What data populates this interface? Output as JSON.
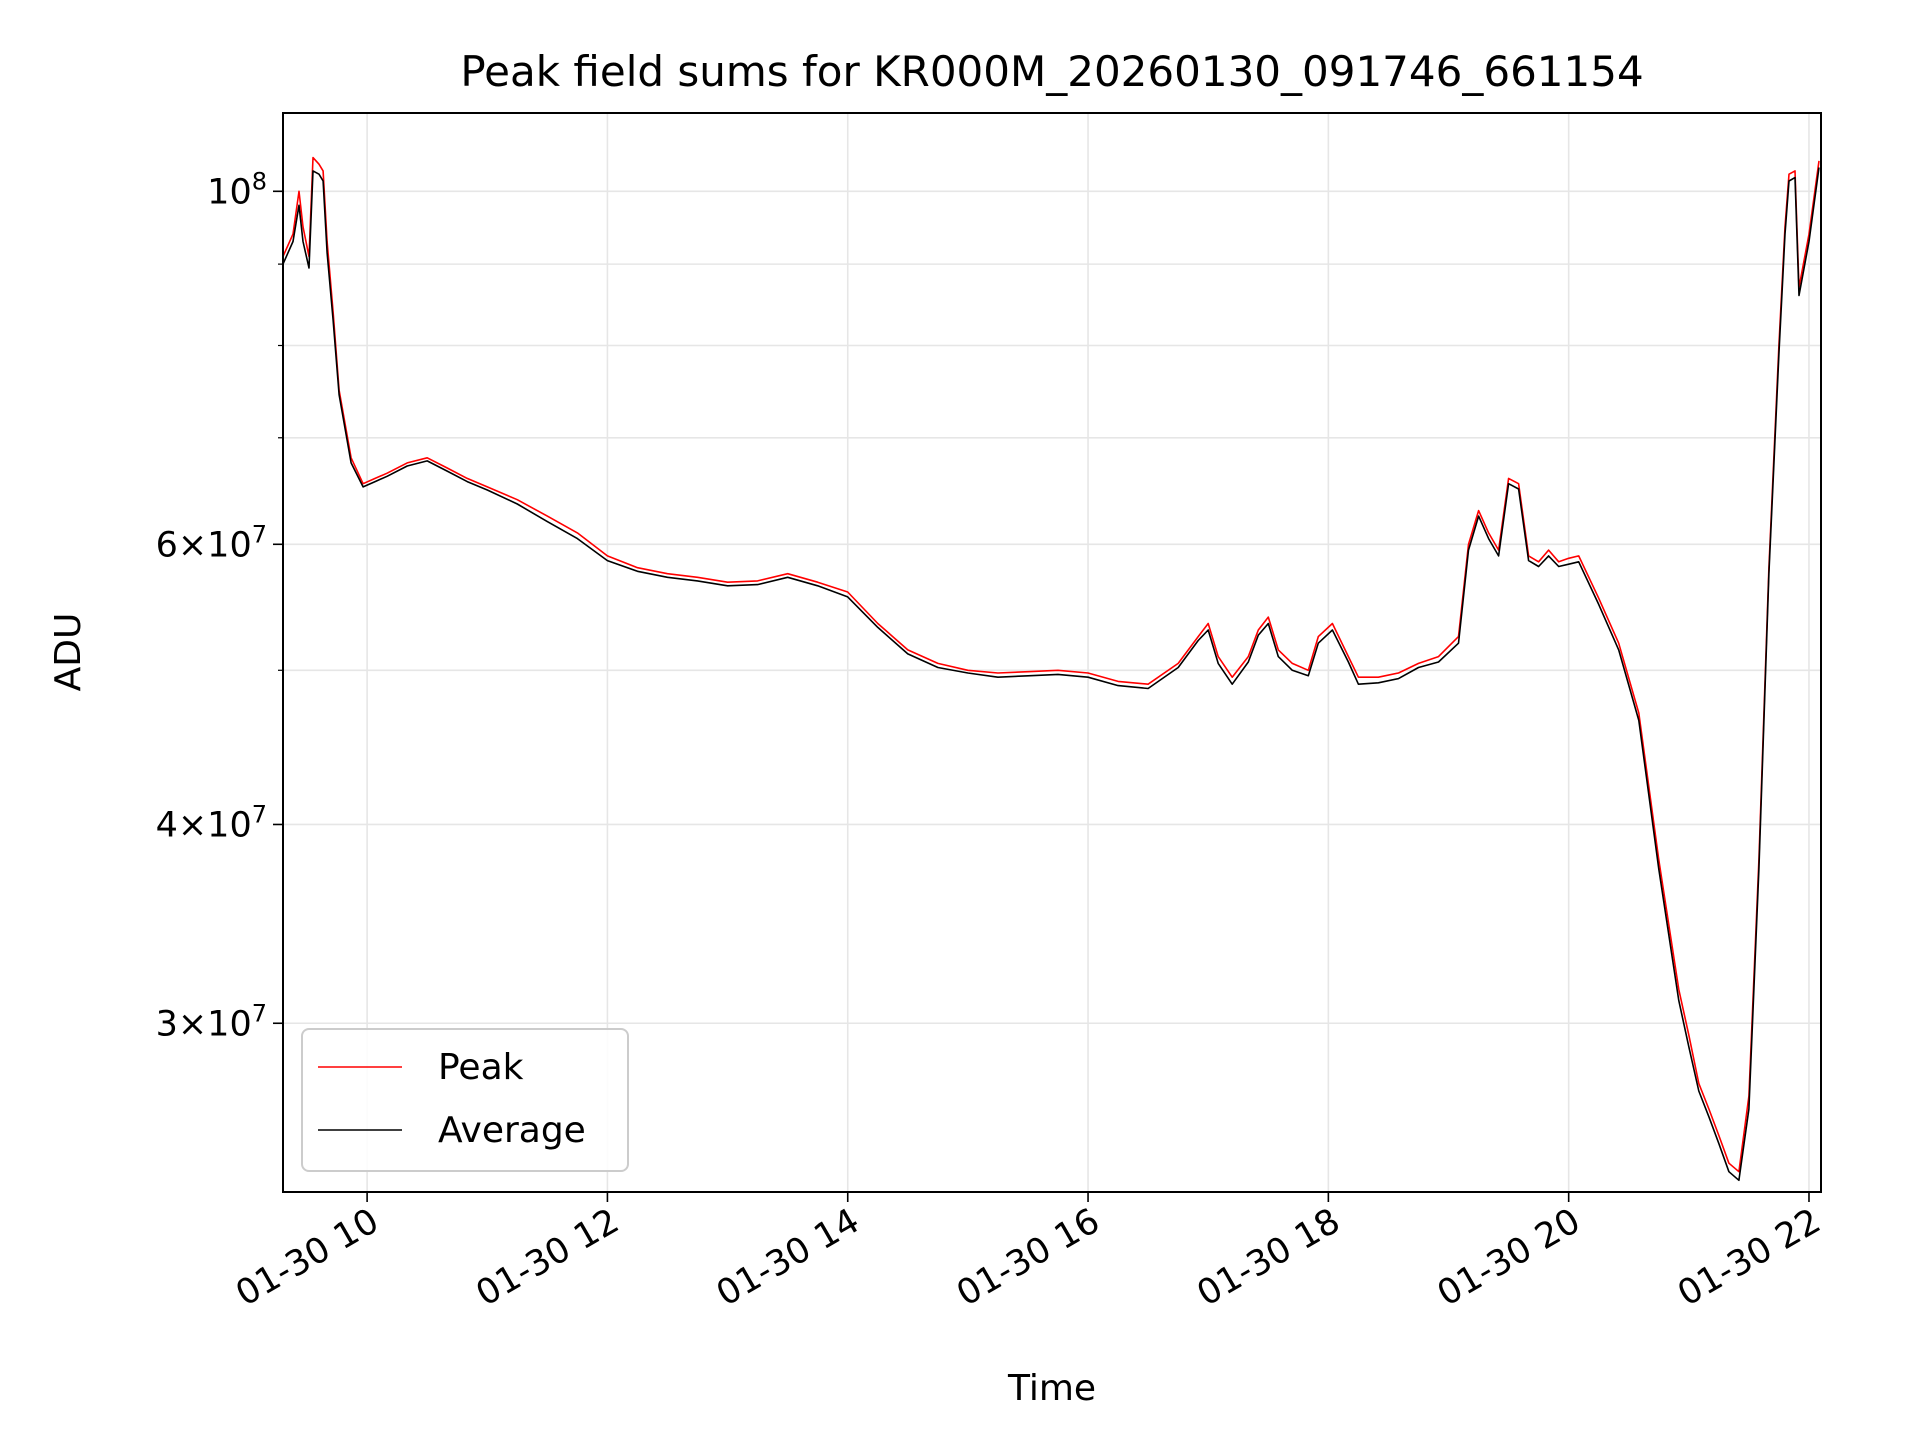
{
  "chart_data": {
    "type": "line",
    "title": "Peak field sums for KR000M_20260130_091746_661154",
    "xlabel": "Time",
    "ylabel": "ADU",
    "yscale": "log",
    "grid": true,
    "legend_position": "lower-left",
    "x_axis": {
      "type": "datetime",
      "start": "2026-01-30 09:18",
      "end": "2026-01-30 22:06",
      "ticks": [
        {
          "time": "2026-01-30 10:00",
          "label": "01-30 10"
        },
        {
          "time": "2026-01-30 12:00",
          "label": "01-30 12"
        },
        {
          "time": "2026-01-30 14:00",
          "label": "01-30 14"
        },
        {
          "time": "2026-01-30 16:00",
          "label": "01-30 16"
        },
        {
          "time": "2026-01-30 18:00",
          "label": "01-30 18"
        },
        {
          "time": "2026-01-30 20:00",
          "label": "01-30 20"
        },
        {
          "time": "2026-01-30 22:00",
          "label": "01-30 22"
        }
      ]
    },
    "y_axis": {
      "ylim": [
        23500000,
        112000000
      ],
      "major_ticks": [
        {
          "value": 30000000,
          "base": "3",
          "exp": "7"
        },
        {
          "value": 40000000,
          "base": "4",
          "exp": "7"
        },
        {
          "value": 60000000,
          "base": "6",
          "exp": "7"
        },
        {
          "value": 100000000,
          "base": "",
          "exp": "8"
        }
      ],
      "minor_ticks": [
        50000000,
        70000000,
        80000000,
        90000000
      ]
    },
    "series": [
      {
        "name": "Peak",
        "color": "#ff0000",
        "x": [
          "09:18",
          "09:23",
          "09:26",
          "09:28",
          "09:31",
          "09:33",
          "09:36",
          "09:38",
          "09:40",
          "09:43",
          "09:46",
          "09:52",
          "09:58",
          "10:04",
          "10:10",
          "10:20",
          "10:30",
          "10:40",
          "10:50",
          "11:00",
          "11:15",
          "11:30",
          "11:45",
          "12:00",
          "12:15",
          "12:30",
          "12:45",
          "13:00",
          "13:15",
          "13:30",
          "13:45",
          "14:00",
          "14:15",
          "14:30",
          "14:45",
          "15:00",
          "15:15",
          "15:30",
          "15:45",
          "16:00",
          "16:15",
          "16:30",
          "16:45",
          "16:55",
          "17:00",
          "17:05",
          "17:12",
          "17:20",
          "17:25",
          "17:30",
          "17:35",
          "17:42",
          "17:50",
          "17:55",
          "18:02",
          "18:10",
          "18:15",
          "18:25",
          "18:35",
          "18:45",
          "18:55",
          "19:05",
          "19:10",
          "19:15",
          "19:20",
          "19:25",
          "19:30",
          "19:35",
          "19:40",
          "19:45",
          "19:50",
          "19:55",
          "20:00",
          "20:05",
          "20:15",
          "20:25",
          "20:35",
          "20:45",
          "20:55",
          "21:00",
          "21:05",
          "21:10",
          "21:15",
          "21:20",
          "21:25",
          "21:30",
          "21:35",
          "21:40",
          "21:45",
          "21:48",
          "21:50",
          "21:53",
          "21:55",
          "22:00",
          "22:05"
        ],
        "y": [
          91000000,
          94000000,
          100000000,
          95000000,
          91000000,
          105000000,
          104000000,
          103000000,
          93000000,
          84000000,
          75000000,
          68000000,
          65500000,
          66000000,
          66500000,
          67500000,
          68000000,
          67000000,
          66000000,
          65200000,
          64000000,
          62500000,
          61000000,
          59000000,
          58000000,
          57500000,
          57200000,
          56800000,
          56900000,
          57500000,
          56800000,
          56000000,
          53500000,
          51500000,
          50500000,
          50000000,
          49800000,
          49900000,
          50000000,
          49800000,
          49200000,
          49000000,
          50500000,
          52500000,
          53500000,
          51000000,
          49500000,
          51000000,
          53000000,
          54000000,
          51500000,
          50500000,
          50000000,
          52500000,
          53500000,
          51000000,
          49500000,
          49500000,
          49800000,
          50500000,
          51000000,
          52500000,
          60000000,
          63000000,
          61000000,
          59500000,
          66000000,
          65500000,
          59000000,
          58500000,
          59500000,
          58500000,
          58800000,
          59000000,
          55500000,
          52000000,
          47000000,
          38000000,
          31500000,
          29500000,
          27500000,
          26500000,
          25500000,
          24500000,
          24200000,
          27000000,
          38000000,
          58000000,
          80000000,
          95000000,
          102500000,
          103000000,
          87000000,
          94000000,
          104500000
        ]
      },
      {
        "name": "Average",
        "color": "#000000",
        "x": [
          "09:18",
          "09:23",
          "09:26",
          "09:28",
          "09:31",
          "09:33",
          "09:36",
          "09:38",
          "09:40",
          "09:43",
          "09:46",
          "09:52",
          "09:58",
          "10:04",
          "10:10",
          "10:20",
          "10:30",
          "10:40",
          "10:50",
          "11:00",
          "11:15",
          "11:30",
          "11:45",
          "12:00",
          "12:15",
          "12:30",
          "12:45",
          "13:00",
          "13:15",
          "13:30",
          "13:45",
          "14:00",
          "14:15",
          "14:30",
          "14:45",
          "15:00",
          "15:15",
          "15:30",
          "15:45",
          "16:00",
          "16:15",
          "16:30",
          "16:45",
          "16:55",
          "17:00",
          "17:05",
          "17:12",
          "17:20",
          "17:25",
          "17:30",
          "17:35",
          "17:42",
          "17:50",
          "17:55",
          "18:02",
          "18:10",
          "18:15",
          "18:25",
          "18:35",
          "18:45",
          "18:55",
          "19:05",
          "19:10",
          "19:15",
          "19:20",
          "19:25",
          "19:30",
          "19:35",
          "19:40",
          "19:45",
          "19:50",
          "19:55",
          "20:00",
          "20:05",
          "20:15",
          "20:25",
          "20:35",
          "20:45",
          "20:55",
          "21:00",
          "21:05",
          "21:10",
          "21:15",
          "21:20",
          "21:25",
          "21:30",
          "21:35",
          "21:40",
          "21:45",
          "21:48",
          "21:50",
          "21:53",
          "21:55",
          "22:00",
          "22:05"
        ],
        "y": [
          90000000,
          93000000,
          98000000,
          93000000,
          89500000,
          103000000,
          102500000,
          101500000,
          91500000,
          83000000,
          74500000,
          67500000,
          65200000,
          65700000,
          66200000,
          67200000,
          67700000,
          66700000,
          65700000,
          64900000,
          63600000,
          62000000,
          60500000,
          58600000,
          57700000,
          57200000,
          56900000,
          56500000,
          56600000,
          57200000,
          56500000,
          55600000,
          53200000,
          51200000,
          50200000,
          49800000,
          49500000,
          49600000,
          49700000,
          49500000,
          48900000,
          48700000,
          50200000,
          52200000,
          53000000,
          50500000,
          49000000,
          50600000,
          52600000,
          53500000,
          51000000,
          50000000,
          49600000,
          52000000,
          53000000,
          50600000,
          49000000,
          49100000,
          49400000,
          50200000,
          50600000,
          52000000,
          59500000,
          62500000,
          60500000,
          59000000,
          65500000,
          65000000,
          58600000,
          58100000,
          59000000,
          58100000,
          58300000,
          58500000,
          55000000,
          51500000,
          46500000,
          37500000,
          31000000,
          29000000,
          27200000,
          26200000,
          25200000,
          24200000,
          23900000,
          26500000,
          37500000,
          57500000,
          79000000,
          94000000,
          101500000,
          102000000,
          86000000,
          93000000,
          103500000
        ]
      }
    ]
  }
}
